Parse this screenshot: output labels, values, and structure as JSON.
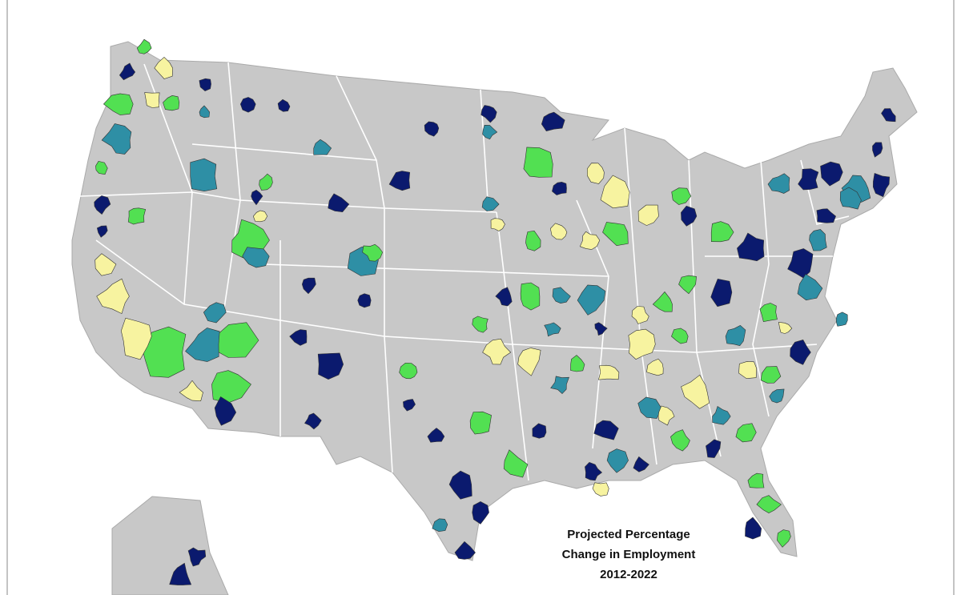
{
  "map": {
    "title_lines": [
      "Projected Percentage",
      "Change in Employment",
      "2012-2022"
    ]
  }
}
